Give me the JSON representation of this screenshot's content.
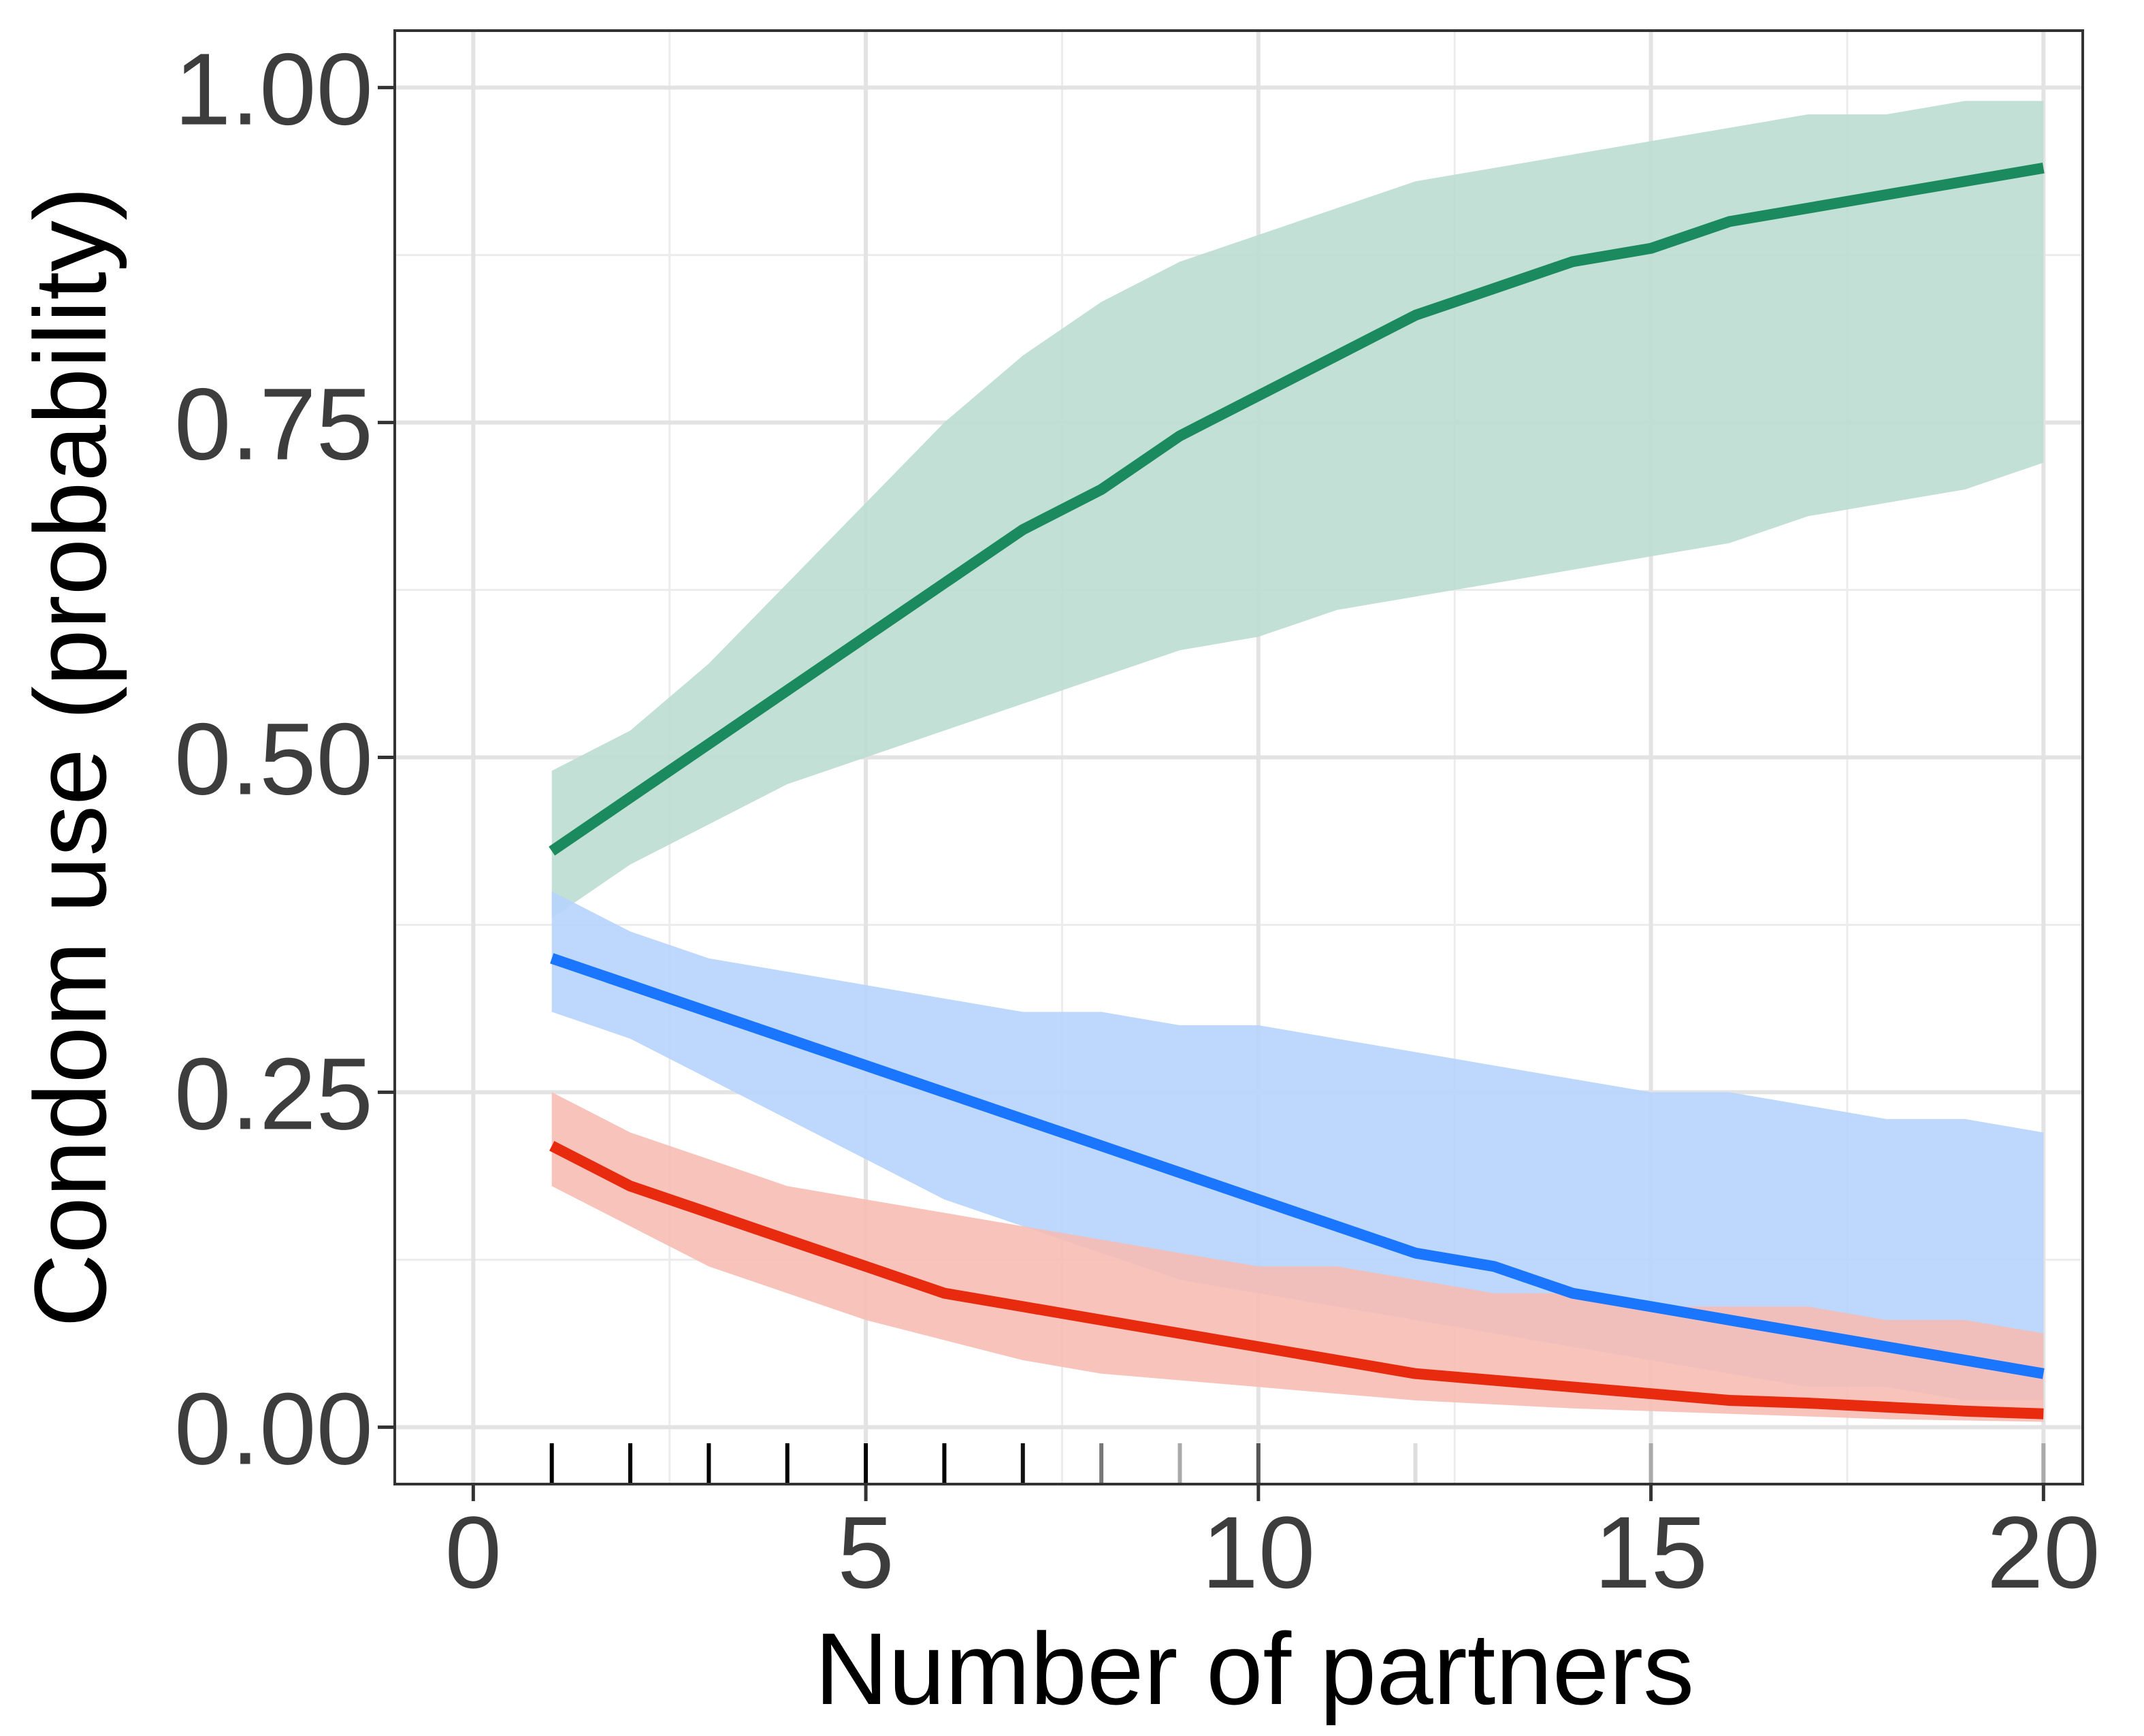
{
  "chart_data": {
    "type": "line",
    "title": "",
    "xlabel": "Number of partners",
    "ylabel": "Condom use (probability)",
    "xlim": [
      -1,
      20.5
    ],
    "ylim": [
      -0.0425,
      1.0425
    ],
    "x_ticks": [
      0,
      5,
      10,
      15,
      20
    ],
    "x_tick_labels": [
      "0",
      "5",
      "10",
      "15",
      "20"
    ],
    "y_ticks": [
      0,
      0.25,
      0.5,
      0.75,
      1.0
    ],
    "y_tick_labels": [
      "0.00",
      "0.25",
      "0.50",
      "0.75",
      "1.00"
    ],
    "grid": true,
    "legend": "none",
    "x": [
      1,
      2,
      3,
      4,
      5,
      6,
      7,
      8,
      9,
      10,
      11,
      12,
      13,
      14,
      15,
      16,
      17,
      18,
      19,
      20
    ],
    "series": [
      {
        "color": "#1b8a5f",
        "band_color": "#bbddd0",
        "values": [
          0.43,
          0.47,
          0.51,
          0.55,
          0.59,
          0.63,
          0.67,
          0.7,
          0.74,
          0.77,
          0.8,
          0.83,
          0.85,
          0.87,
          0.88,
          0.9,
          0.91,
          0.92,
          0.93,
          0.94
        ],
        "lower": [
          0.38,
          0.42,
          0.45,
          0.48,
          0.5,
          0.52,
          0.54,
          0.56,
          0.58,
          0.59,
          0.61,
          0.62,
          0.63,
          0.64,
          0.65,
          0.66,
          0.68,
          0.69,
          0.7,
          0.72
        ],
        "upper": [
          0.49,
          0.52,
          0.57,
          0.63,
          0.69,
          0.75,
          0.8,
          0.84,
          0.87,
          0.89,
          0.91,
          0.93,
          0.94,
          0.95,
          0.96,
          0.97,
          0.98,
          0.98,
          0.99,
          0.99
        ]
      },
      {
        "color": "#1a75ff",
        "band_color": "#b6d3fd",
        "values": [
          0.35,
          0.33,
          0.31,
          0.29,
          0.27,
          0.25,
          0.23,
          0.21,
          0.19,
          0.17,
          0.15,
          0.13,
          0.12,
          0.1,
          0.09,
          0.08,
          0.07,
          0.06,
          0.05,
          0.04
        ],
        "lower": [
          0.31,
          0.29,
          0.26,
          0.23,
          0.2,
          0.17,
          0.15,
          0.13,
          0.11,
          0.1,
          0.09,
          0.08,
          0.07,
          0.06,
          0.05,
          0.04,
          0.03,
          0.03,
          0.02,
          0.02
        ],
        "upper": [
          0.4,
          0.37,
          0.35,
          0.34,
          0.33,
          0.32,
          0.31,
          0.31,
          0.3,
          0.3,
          0.29,
          0.28,
          0.27,
          0.26,
          0.25,
          0.25,
          0.24,
          0.23,
          0.23,
          0.22
        ]
      },
      {
        "color": "#e82a0e",
        "band_color": "#f6bdb4",
        "values": [
          0.21,
          0.18,
          0.16,
          0.14,
          0.12,
          0.1,
          0.09,
          0.08,
          0.07,
          0.06,
          0.05,
          0.04,
          0.035,
          0.03,
          0.025,
          0.02,
          0.018,
          0.015,
          0.012,
          0.01
        ],
        "lower": [
          0.18,
          0.15,
          0.12,
          0.1,
          0.08,
          0.065,
          0.05,
          0.04,
          0.035,
          0.03,
          0.025,
          0.02,
          0.017,
          0.014,
          0.012,
          0.01,
          0.008,
          0.006,
          0.005,
          0.004
        ],
        "upper": [
          0.25,
          0.22,
          0.2,
          0.18,
          0.17,
          0.16,
          0.15,
          0.14,
          0.13,
          0.12,
          0.12,
          0.11,
          0.1,
          0.1,
          0.09,
          0.09,
          0.09,
          0.08,
          0.08,
          0.07
        ]
      }
    ],
    "rug": [
      {
        "x": 1,
        "shade": "#000000"
      },
      {
        "x": 2,
        "shade": "#000000"
      },
      {
        "x": 3,
        "shade": "#000000"
      },
      {
        "x": 4,
        "shade": "#000000"
      },
      {
        "x": 5,
        "shade": "#000000"
      },
      {
        "x": 6,
        "shade": "#000000"
      },
      {
        "x": 7,
        "shade": "#111111"
      },
      {
        "x": 8,
        "shade": "#777777"
      },
      {
        "x": 9,
        "shade": "#aaaaaa"
      },
      {
        "x": 10,
        "shade": "#555555"
      },
      {
        "x": 12,
        "shade": "#dddddd"
      },
      {
        "x": 15,
        "shade": "#aaaaaa"
      },
      {
        "x": 20,
        "shade": "#aaaaaa"
      }
    ]
  }
}
